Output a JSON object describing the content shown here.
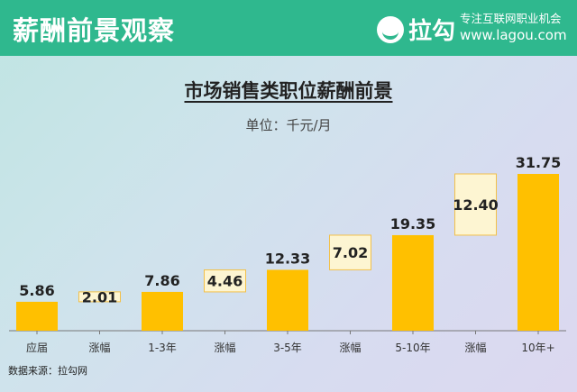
{
  "header": {
    "title": "薪酬前景观察",
    "logo_text": "拉勾",
    "slogan_line1": "专注互联网职业机会",
    "slogan_line2": "www.lagou.com"
  },
  "chart_data": {
    "type": "bar",
    "title": "市场销售类职位薪酬前景",
    "subtitle": "单位：千元/月",
    "categories": [
      "应届",
      "涨幅",
      "1-3年",
      "涨幅",
      "3-5年",
      "涨幅",
      "5-10年",
      "涨幅",
      "10年+"
    ],
    "values": [
      5.86,
      2.01,
      7.86,
      4.46,
      12.33,
      7.02,
      19.35,
      12.4,
      31.75
    ],
    "labels": [
      "5.86",
      "2.01",
      "7.86",
      "4.46",
      "12.33",
      "7.02",
      "19.35",
      "12.40",
      "31.75"
    ],
    "kinds": [
      "level",
      "increase",
      "level",
      "increase",
      "level",
      "increase",
      "level",
      "increase",
      "level"
    ],
    "ylim": [
      0,
      31.75
    ],
    "grid": false,
    "colors": {
      "level": "#ffc000",
      "increase_fill": "#fdf5d2",
      "increase_border": "#f2c04a",
      "axis": "#777777"
    }
  },
  "footer": {
    "source": "数据来源：拉勾网"
  }
}
